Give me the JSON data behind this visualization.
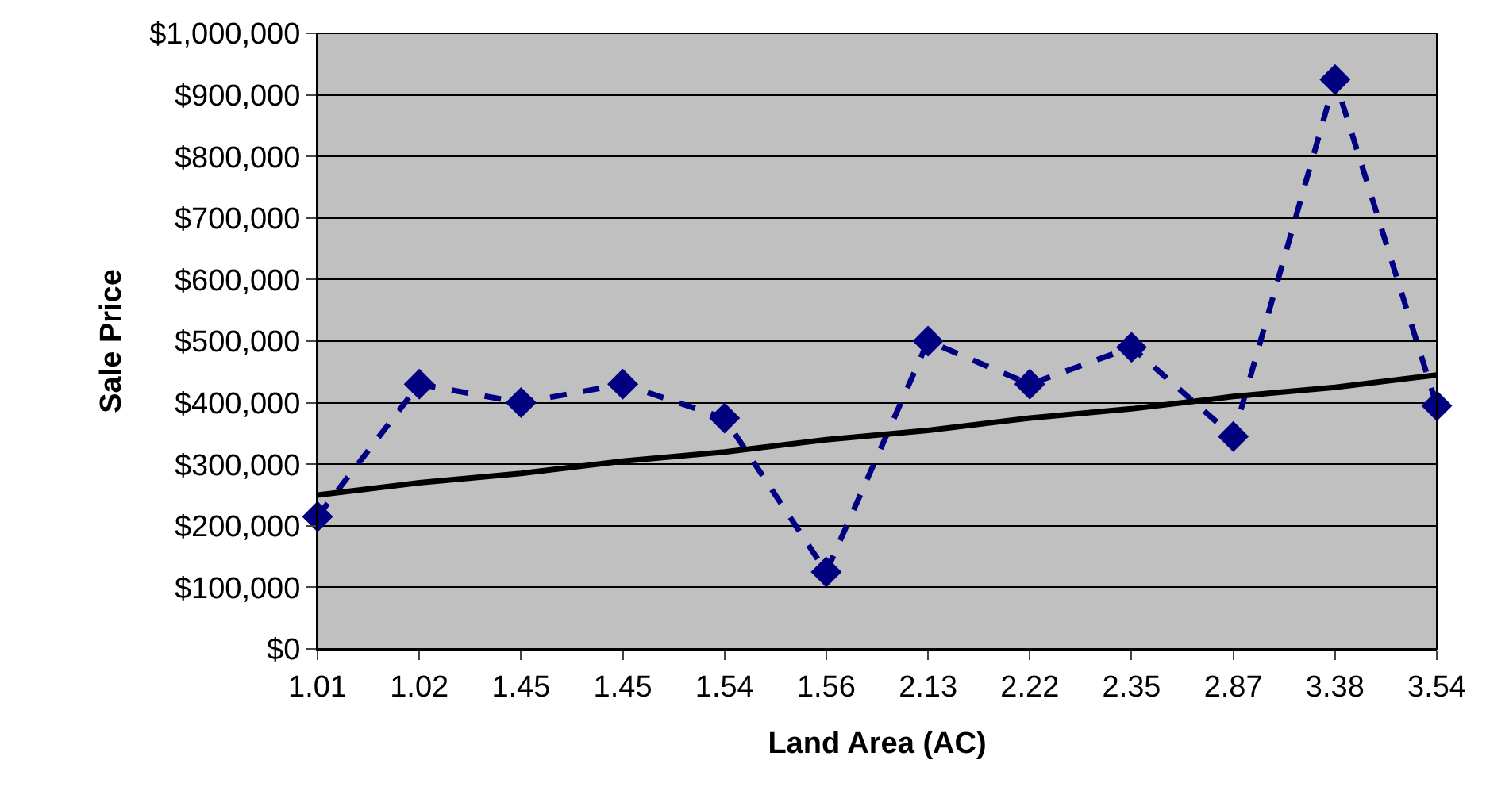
{
  "chart_data": {
    "type": "line",
    "xlabel": "Land Area (AC)",
    "ylabel": "Sale Price",
    "categories": [
      "1.01",
      "1.02",
      "1.45",
      "1.45",
      "1.54",
      "1.56",
      "2.13",
      "2.22",
      "2.35",
      "2.87",
      "3.38",
      "3.54"
    ],
    "series": [
      {
        "color": "#000080",
        "marker": "diamond",
        "line_style": "dashed",
        "values": [
          215000,
          430000,
          400000,
          430000,
          375000,
          125000,
          500000,
          430000,
          490000,
          345000,
          925000,
          395000
        ]
      },
      {
        "color": "#000000",
        "marker": "none",
        "line_style": "solid",
        "values": [
          250000,
          270000,
          285000,
          305000,
          320000,
          340000,
          355000,
          375000,
          390000,
          410000,
          425000,
          445000
        ]
      }
    ],
    "ylim": [
      0,
      1000000
    ],
    "yticks": [
      {
        "value": 0,
        "label": "$0"
      },
      {
        "value": 100000,
        "label": "$100,000"
      },
      {
        "value": 200000,
        "label": "$200,000"
      },
      {
        "value": 300000,
        "label": "$300,000"
      },
      {
        "value": 400000,
        "label": "$400,000"
      },
      {
        "value": 500000,
        "label": "$500,000"
      },
      {
        "value": 600000,
        "label": "$600,000"
      },
      {
        "value": 700000,
        "label": "$700,000"
      },
      {
        "value": 800000,
        "label": "$800,000"
      },
      {
        "value": 900000,
        "label": "$900,000"
      },
      {
        "value": 1000000,
        "label": "$1,000,000"
      }
    ],
    "grid": "y"
  }
}
